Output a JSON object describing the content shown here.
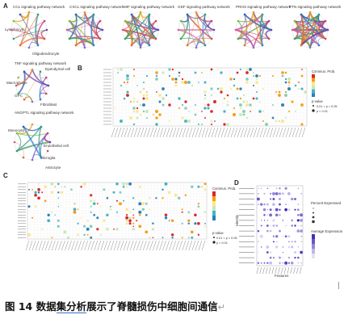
{
  "figure": {
    "panels": [
      {
        "id": "A",
        "label": "A"
      },
      {
        "id": "B",
        "label": "B"
      },
      {
        "id": "C",
        "label": "C"
      },
      {
        "id": "D",
        "label": "D"
      }
    ],
    "network_titles": [
      "CCL signaling pathway network",
      "CXCL signaling pathway network",
      "MIF signaling pathway network",
      "GDF signaling pathway network",
      "PROS signaling pathway network",
      "PTN signaling pathway network",
      "TNF signaling pathway network",
      "ANGPTL signaling pathway network"
    ],
    "network_nodes": [
      "Ependymal cell",
      "Oligodendrocyte",
      "Lymphocyte",
      "Neuron",
      "Pericyte",
      "Fibroblast",
      "Macrophage",
      "OPC",
      "Monocyte",
      "Astrocyte",
      "Microglia",
      "Endothelial cell",
      "Neutrophil",
      "DC",
      "Mast cell"
    ],
    "legend_b": {
      "title": "Commun. Prob.",
      "pval_title": "p-value",
      "pval_items": [
        "0.01 < p < 0.05",
        "p < 0.01"
      ]
    },
    "legend_c": {
      "title": "Commun. Prob.",
      "pval_title": "p-value",
      "pval_items": [
        "0.01 < p < 0.05",
        "p < 0.01"
      ]
    },
    "dotplot_d": {
      "y_title": "Identity",
      "x_title": "Features",
      "rows": [
        "Astrocyte",
        "Oligodendrocyte",
        "Lymphocyte",
        "Neuron",
        "Pericyte",
        "Fibroblast",
        "Macrophage",
        "OPC",
        "Monocyte",
        "DC",
        "Ependymal cell",
        "Microglia",
        "Dis-Marked",
        "Neutrophil",
        "Endothelial cell"
      ],
      "legend_pct_title": "Percent Expressed",
      "legend_avg_title": "Average Expression"
    }
  },
  "caption": {
    "prefix": "图 14 数据",
    "underlined": "集分析",
    "suffix": "展示了脊髓损伤中细胞间通信",
    "return_mark": "↵"
  },
  "colors": {
    "circle_blue": "#2b5fb4",
    "caption_text": "#111111",
    "dot_purple": "#4b2db8"
  }
}
